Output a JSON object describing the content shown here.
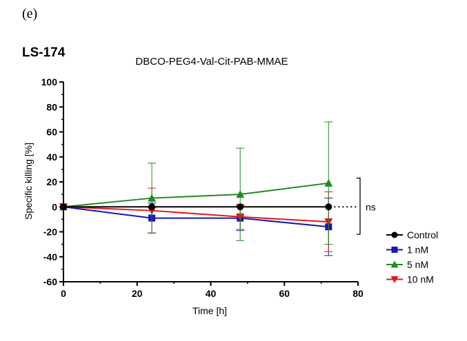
{
  "panel_label": "(e)",
  "cell_line": "LS-174",
  "chart_data": {
    "type": "line",
    "title": "DBCO-PEG4-Val-Cit-PAB-MMAE",
    "xlabel": "Time [h]",
    "ylabel": "Specific killing [%]",
    "xlim": [
      0,
      80
    ],
    "ylim": [
      -60,
      100
    ],
    "xticks": [
      0,
      20,
      40,
      60,
      80
    ],
    "yticks": [
      -60,
      -40,
      -20,
      0,
      20,
      40,
      60,
      80,
      100
    ],
    "grid": false,
    "legend_position": "right",
    "x": [
      0,
      24,
      48,
      72
    ],
    "series": [
      {
        "name": "Control",
        "color": "#000000",
        "marker": "circle",
        "values": [
          0,
          0,
          0,
          0
        ],
        "error": [
          0,
          0,
          0,
          0
        ]
      },
      {
        "name": "1 nM",
        "color": "#1515b8",
        "marker": "square",
        "values": [
          0,
          -9,
          -9,
          -16
        ],
        "error": [
          0,
          12,
          10,
          23
        ]
      },
      {
        "name": "5 nM",
        "color": "#1f8a1f",
        "marker": "triangle-up",
        "values": [
          0,
          7,
          10,
          19
        ],
        "error": [
          0,
          28,
          37,
          49
        ]
      },
      {
        "name": "10 nM",
        "color": "#e01818",
        "marker": "triangle-down",
        "values": [
          0,
          -3,
          -8,
          -12
        ],
        "error": [
          0,
          18,
          10,
          24
        ]
      }
    ],
    "annotation": {
      "text": "ns",
      "bracket_y": [
        23,
        -22
      ],
      "dotted_y": 0
    }
  }
}
